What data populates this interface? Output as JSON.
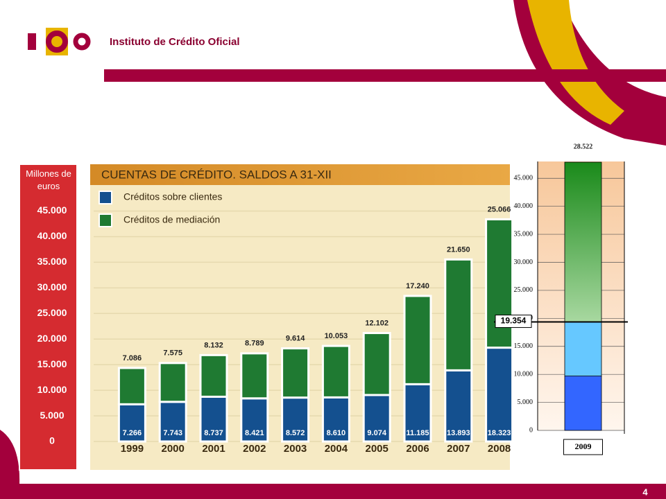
{
  "header": {
    "title": "Instituto de Crédito Oficial"
  },
  "page_number": "4",
  "chart_data": [
    {
      "type": "bar",
      "stacked": true,
      "title": "CUENTAS DE CRÉDITO. SALDOS A 31-XII",
      "y_label": "Millones de euros",
      "categories": [
        "1999",
        "2000",
        "2001",
        "2002",
        "2003",
        "2004",
        "2005",
        "2006",
        "2007",
        "2008"
      ],
      "series": [
        {
          "name": "Créditos sobre clientes",
          "color": "#14508f",
          "values": [
            7266,
            7743,
            8737,
            8421,
            8572,
            8610,
            9074,
            11185,
            13893,
            18323
          ],
          "value_labels": [
            "7.266",
            "7.743",
            "8.737",
            "8.421",
            "8.572",
            "8.610",
            "9.074",
            "11.185",
            "13.893",
            "18.323"
          ]
        },
        {
          "name": "Créditos de mediación",
          "color": "#1f7a32",
          "values": [
            7086,
            7575,
            8132,
            8789,
            9614,
            10053,
            12102,
            17240,
            21650,
            25066
          ],
          "value_labels": [
            "7.086",
            "7.575",
            "8.132",
            "8.789",
            "9.614",
            "10.053",
            "12.102",
            "17.240",
            "21.650",
            "25.066"
          ]
        }
      ],
      "ylim": [
        0,
        54000
      ],
      "yticks": [
        0,
        {
          "value": 5000,
          "label": "5.000"
        },
        {
          "value": 10000,
          "label": "10.000"
        },
        {
          "value": 15000,
          "label": "15.000"
        },
        {
          "value": 20000,
          "label": "20.000"
        },
        {
          "value": 25000,
          "label": "25.000"
        },
        {
          "value": 30000,
          "label": "30.000"
        },
        {
          "value": 35000,
          "label": "35.000"
        },
        {
          "value": 40000,
          "label": "40.000"
        },
        {
          "value": 45000,
          "label": "45.000"
        }
      ],
      "grid": true
    },
    {
      "type": "bar",
      "stacked": true,
      "categories": [
        "2009"
      ],
      "series": [
        {
          "color": "#3366ff",
          "values": [
            9700
          ]
        },
        {
          "color": "#66c8ff",
          "values": [
            9654
          ]
        },
        {
          "color": "#1a8a1a",
          "values": [
            28522
          ],
          "value_labels": [
            "28.522"
          ]
        }
      ],
      "annotation": {
        "value": 19354,
        "label": "19.354"
      },
      "ylim": [
        0,
        48000
      ],
      "yticks": [
        0,
        {
          "value": 5000,
          "label": "5.000"
        },
        {
          "value": 10000,
          "label": "10.000"
        },
        {
          "value": 15000,
          "label": "15.000"
        },
        {
          "value": 20000,
          "label": "20.000"
        },
        {
          "value": 25000,
          "label": "25.000"
        },
        {
          "value": 30000,
          "label": "30.000"
        },
        {
          "value": 35000,
          "label": "35.000"
        },
        {
          "value": 40000,
          "label": "40.000"
        },
        {
          "value": 45000,
          "label": "45.000"
        }
      ],
      "grid": true
    }
  ]
}
